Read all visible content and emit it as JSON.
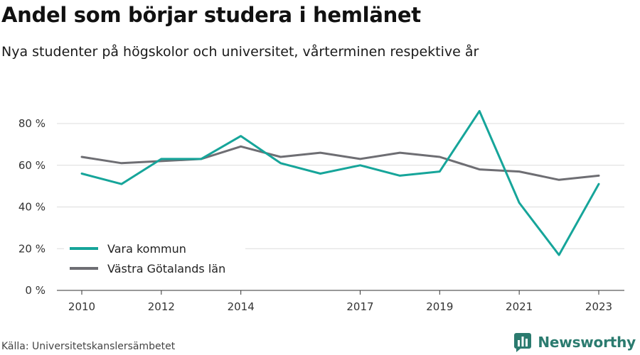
{
  "header": {
    "title": "Andel som börjar studera i hemlänet",
    "subtitle": "Nya studenter på högskolor och universitet, vårterminen respektive år"
  },
  "footer": {
    "source": "Källa: Universitetskanslersämbetet",
    "brand": "Newsworthy",
    "brand_icon": "bar-chart-logo-icon",
    "brand_color": "#2b7b6f"
  },
  "chart_data": {
    "type": "line",
    "x": [
      2010,
      2011,
      2012,
      2013,
      2014,
      2015,
      2016,
      2017,
      2018,
      2019,
      2020,
      2021,
      2022,
      2023
    ],
    "x_tick_labels": [
      "2010",
      "2012",
      "2014",
      "2017",
      "2019",
      "2021",
      "2023"
    ],
    "x_tick_values": [
      2010,
      2012,
      2014,
      2017,
      2019,
      2021,
      2023
    ],
    "y_tick_values": [
      0,
      20,
      40,
      60,
      80
    ],
    "y_tick_labels": [
      "0 %",
      "20 %",
      "40 %",
      "60 %",
      "80 %"
    ],
    "ylim": [
      0,
      80
    ],
    "xlim": [
      2010,
      2023
    ],
    "grid": true,
    "legend_position": "bottom-left",
    "series": [
      {
        "name": "Vara kommun",
        "color": "#16a59a",
        "values": [
          56,
          51,
          63,
          63,
          74,
          61,
          56,
          60,
          55,
          57,
          86,
          42,
          17,
          51
        ]
      },
      {
        "name": "Västra Götalands län",
        "color": "#6e6e73",
        "values": [
          64,
          61,
          62,
          63,
          69,
          64,
          66,
          63,
          66,
          64,
          58,
          57,
          53,
          55
        ]
      }
    ]
  }
}
